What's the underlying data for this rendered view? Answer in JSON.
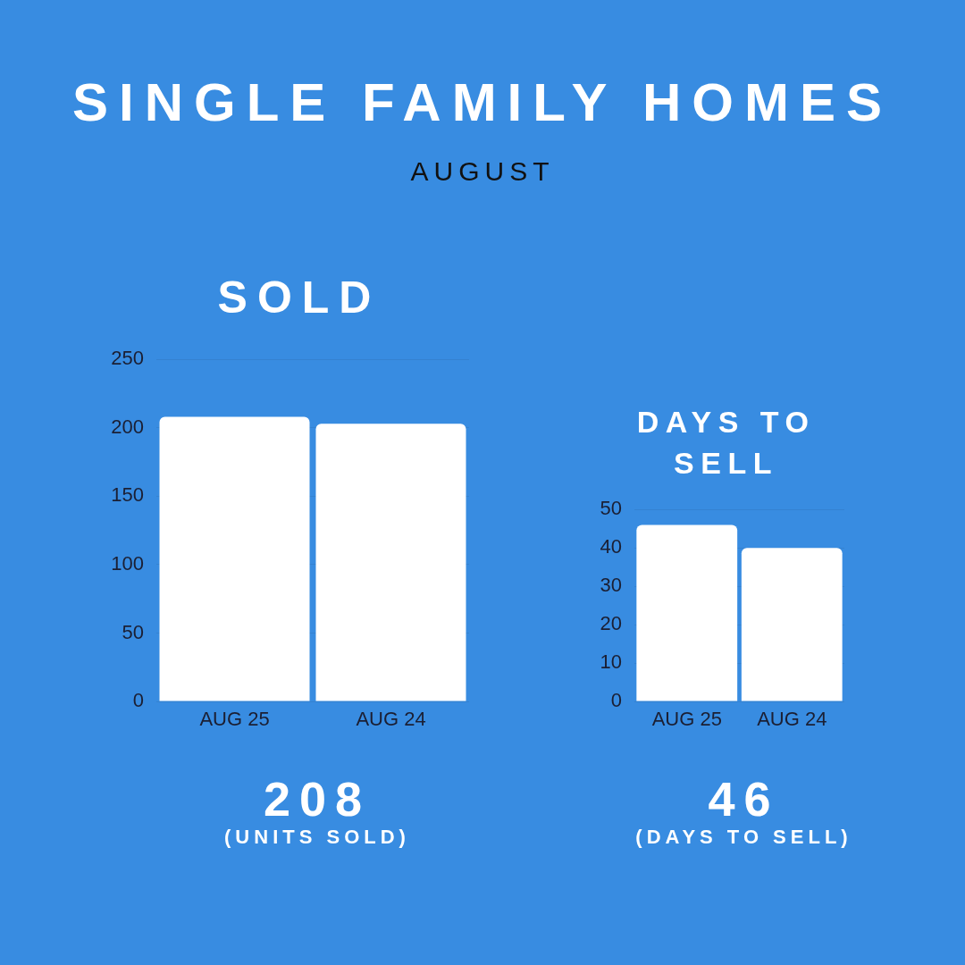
{
  "chart_data": [
    {
      "type": "other",
      "title": "SINGLE FAMILY HOMES",
      "subtitle": "AUGUST"
    },
    {
      "type": "bar",
      "title": "SOLD",
      "categories": [
        "AUG 25",
        "AUG 24"
      ],
      "values": [
        208,
        203
      ],
      "color": "#ffffff",
      "ylim": [
        0,
        250
      ],
      "yticks": [
        0,
        50,
        100,
        150,
        200,
        250
      ],
      "grid": "y",
      "annotations": [
        "208",
        "(UNITS SOLD)"
      ]
    },
    {
      "type": "bar",
      "title": "DAYS TO SELL",
      "categories": [
        "AUG 25",
        "AUG 24"
      ],
      "values": [
        46,
        40
      ],
      "color": "#ffffff",
      "ylim": [
        0,
        50
      ],
      "yticks": [
        0,
        10,
        20,
        30,
        40,
        50
      ],
      "grid": "y",
      "annotations": [
        "46",
        "(DAYS TO SELL)"
      ]
    }
  ]
}
